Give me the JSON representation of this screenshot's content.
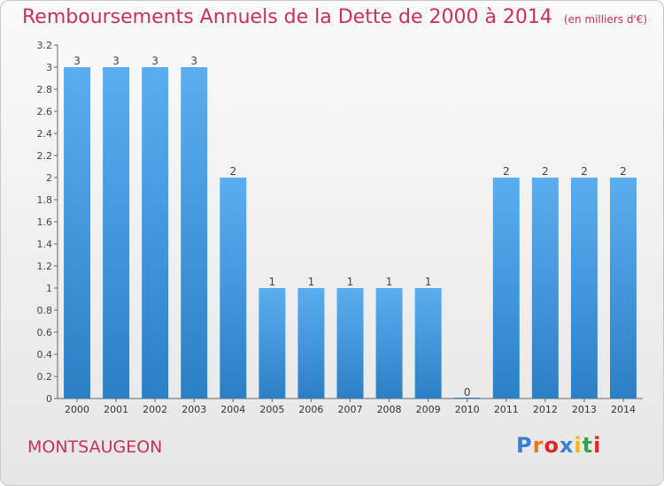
{
  "title": {
    "main": "Remboursements Annuels de la Dette de 2000 à 2014",
    "unit": "(en milliers d'€)"
  },
  "commune": "MONTSAUGEON",
  "logo": {
    "letters": [
      "P",
      "r",
      "o",
      "x",
      "i",
      "t",
      "i"
    ],
    "colors": [
      "#3a7fd1",
      "#e87722",
      "#e02626",
      "#3a7fd1",
      "#f2b705",
      "#2aa84a",
      "#e02626"
    ]
  },
  "colors": {
    "bar_top": "#5aaef0",
    "bar_bottom": "#2d7fc4",
    "title": "#c8325a",
    "axis": "#555555",
    "grid": "#d8d8d8"
  },
  "chart_data": {
    "type": "bar",
    "title": "Remboursements Annuels de la Dette de 2000 à 2014",
    "subtitle": "(en milliers d'€)",
    "xlabel": "",
    "ylabel": "",
    "categories": [
      "2000",
      "2001",
      "2002",
      "2003",
      "2004",
      "2005",
      "2006",
      "2007",
      "2008",
      "2009",
      "2010",
      "2011",
      "2012",
      "2013",
      "2014"
    ],
    "values": [
      3,
      3,
      3,
      3,
      2,
      1,
      1,
      1,
      1,
      1,
      0,
      2,
      2,
      2,
      2
    ],
    "data_labels": [
      "3",
      "3",
      "3",
      "3",
      "2",
      "1",
      "1",
      "1",
      "1",
      "1",
      "0",
      "2",
      "2",
      "2",
      "2"
    ],
    "ylim": [
      0,
      3.2
    ],
    "yticks": [
      0,
      0.2,
      0.4,
      0.6,
      0.8,
      1,
      1.2,
      1.4,
      1.6,
      1.8,
      2,
      2.2,
      2.4,
      2.6,
      2.8,
      3,
      3.2
    ],
    "ytick_labels": [
      "0",
      "0.2",
      "0.4",
      "0.6",
      "0.8",
      "1",
      "1.2",
      "1.4",
      "1.6",
      "1.8",
      "2",
      "2.2",
      "2.4",
      "2.6",
      "2.8",
      "3",
      "3.2"
    ],
    "grid": false,
    "legend": "none"
  }
}
